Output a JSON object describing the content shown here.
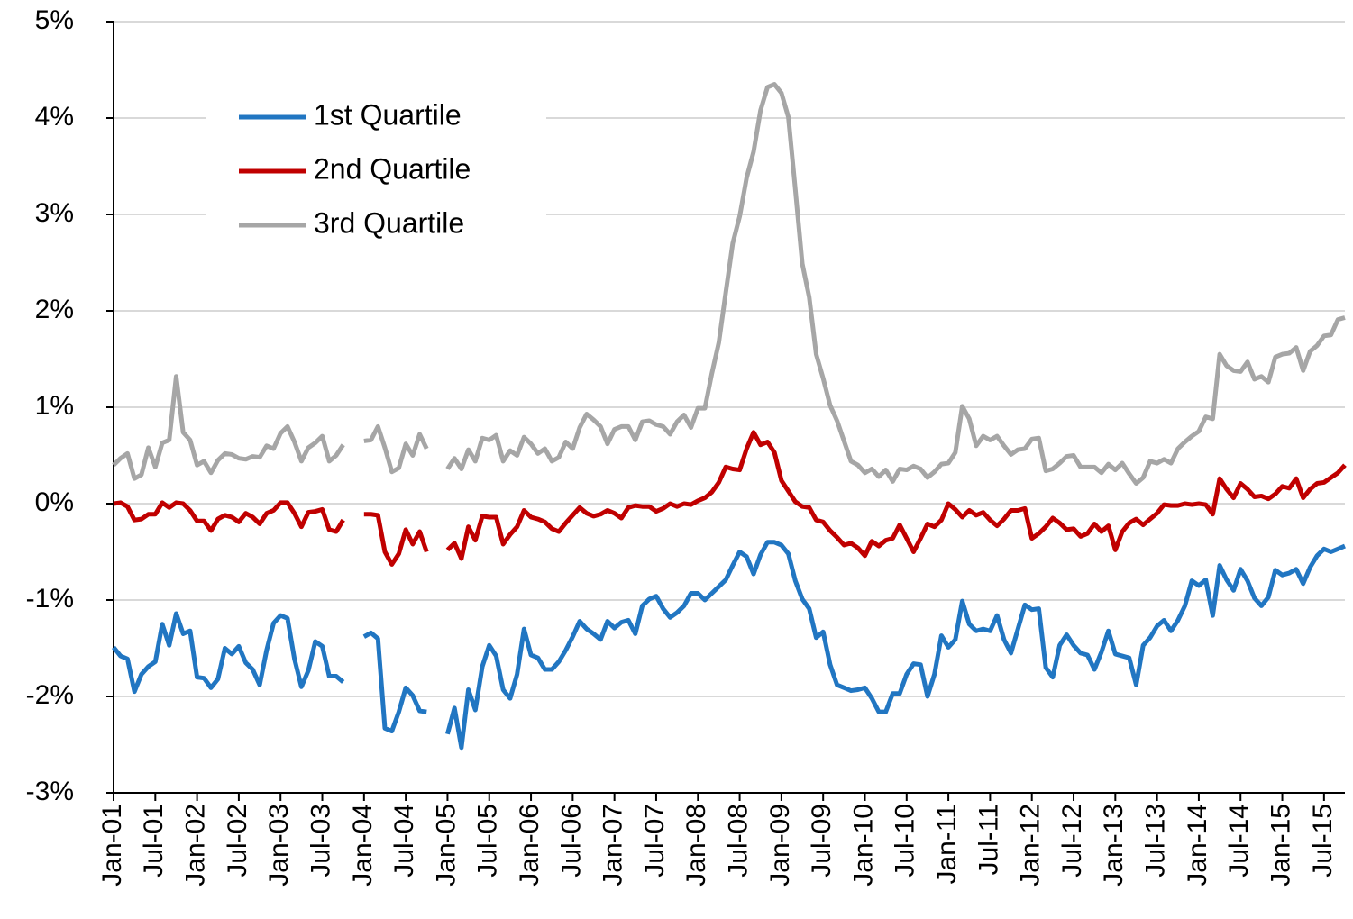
{
  "chart_data": {
    "type": "line",
    "categories": [
      "Jan-01",
      null,
      null,
      null,
      null,
      null,
      "Jul-01",
      null,
      null,
      null,
      null,
      null,
      "Jan-02",
      null,
      null,
      null,
      null,
      null,
      "Jul-02",
      null,
      null,
      null,
      null,
      null,
      "Jan-03",
      null,
      null,
      null,
      null,
      null,
      "Jul-03",
      null,
      null,
      null,
      null,
      null,
      "Jan-04",
      null,
      null,
      null,
      null,
      null,
      "Jul-04",
      null,
      null,
      null,
      null,
      null,
      "Jan-05",
      null,
      null,
      null,
      null,
      null,
      "Jul-05",
      null,
      null,
      null,
      null,
      null,
      "Jan-06",
      null,
      null,
      null,
      null,
      null,
      "Jul-06",
      null,
      null,
      null,
      null,
      null,
      "Jan-07",
      null,
      null,
      null,
      null,
      null,
      "Jul-07",
      null,
      null,
      null,
      null,
      null,
      "Jan-08",
      null,
      null,
      null,
      null,
      null,
      "Jul-08",
      null,
      null,
      null,
      null,
      null,
      "Jan-09",
      null,
      null,
      null,
      null,
      null,
      "Jul-09",
      null,
      null,
      null,
      null,
      null,
      "Jan-10",
      null,
      null,
      null,
      null,
      null,
      "Jul-10",
      null,
      null,
      null,
      null,
      null,
      "Jan-11",
      null,
      null,
      null,
      null,
      null,
      "Jul-11",
      null,
      null,
      null,
      null,
      null,
      "Jan-12",
      null,
      null,
      null,
      null,
      null,
      "Jul-12",
      null,
      null,
      null,
      null,
      null,
      "Jan-13",
      null,
      null,
      null,
      null,
      null,
      "Jul-13",
      null,
      null,
      null,
      null,
      null,
      "Jan-14",
      null,
      null,
      null,
      null,
      null,
      "Jul-14",
      null,
      null,
      null,
      null,
      null,
      "Jan-15",
      null,
      null,
      null,
      null,
      null,
      "Jul-15",
      null,
      null,
      null
    ],
    "series": [
      {
        "name": "1st Quartile",
        "color": "#2176c2",
        "values": [
          -1.49,
          -1.58,
          -1.61,
          -1.95,
          -1.77,
          -1.69,
          -1.64,
          -1.25,
          -1.47,
          -1.14,
          -1.35,
          -1.32,
          -1.8,
          -1.81,
          -1.91,
          -1.82,
          -1.5,
          -1.56,
          -1.48,
          -1.65,
          -1.72,
          -1.88,
          -1.52,
          -1.24,
          -1.16,
          -1.19,
          -1.61,
          -1.9,
          -1.73,
          -1.43,
          -1.48,
          -1.79,
          -1.79,
          -1.85,
          null,
          null,
          -1.38,
          -1.34,
          -1.4,
          -2.33,
          -2.36,
          -2.16,
          -1.91,
          -1.99,
          -2.15,
          -2.16,
          null,
          null,
          -2.39,
          -2.12,
          -2.53,
          -1.93,
          -2.14,
          -1.69,
          -1.47,
          -1.58,
          -1.93,
          -2.02,
          -1.77,
          -1.3,
          -1.57,
          -1.6,
          -1.72,
          -1.72,
          -1.64,
          -1.52,
          -1.38,
          -1.22,
          -1.3,
          -1.35,
          -1.41,
          -1.22,
          -1.29,
          -1.23,
          -1.21,
          -1.35,
          -1.06,
          -0.99,
          -0.96,
          -1.09,
          -1.18,
          -1.13,
          -1.06,
          -0.93,
          -0.93,
          -1.0,
          -0.93,
          -0.86,
          -0.79,
          -0.64,
          -0.5,
          -0.55,
          -0.73,
          -0.53,
          -0.4,
          -0.4,
          -0.43,
          -0.52,
          -0.8,
          -0.99,
          -1.09,
          -1.39,
          -1.33,
          -1.67,
          -1.88,
          -1.91,
          -1.94,
          -1.93,
          -1.91,
          -2.02,
          -2.16,
          -2.16,
          -1.97,
          -1.97,
          -1.77,
          -1.66,
          -1.67,
          -2.0,
          -1.77,
          -1.37,
          -1.49,
          -1.41,
          -1.01,
          -1.25,
          -1.32,
          -1.3,
          -1.32,
          -1.16,
          -1.41,
          -1.55,
          -1.3,
          -1.05,
          -1.1,
          -1.09,
          -1.7,
          -1.8,
          -1.47,
          -1.36,
          -1.47,
          -1.55,
          -1.57,
          -1.72,
          -1.54,
          -1.32,
          -1.56,
          -1.58,
          -1.6,
          -1.88,
          -1.47,
          -1.39,
          -1.27,
          -1.21,
          -1.32,
          -1.21,
          -1.06,
          -0.8,
          -0.85,
          -0.79,
          -1.16,
          -0.64,
          -0.79,
          -0.9,
          -0.68,
          -0.8,
          -0.98,
          -1.06,
          -0.97,
          -0.69,
          -0.74,
          -0.72,
          -0.68,
          -0.83,
          -0.66,
          -0.54,
          -0.47,
          -0.5,
          -0.47,
          -0.44
        ]
      },
      {
        "name": "2nd Quartile",
        "color": "#c00000",
        "values": [
          0.0,
          0.01,
          -0.03,
          -0.17,
          -0.16,
          -0.11,
          -0.11,
          0.01,
          -0.04,
          0.01,
          0.0,
          -0.07,
          -0.18,
          -0.18,
          -0.28,
          -0.16,
          -0.12,
          -0.14,
          -0.19,
          -0.1,
          -0.14,
          -0.21,
          -0.1,
          -0.07,
          0.01,
          0.01,
          -0.1,
          -0.24,
          -0.09,
          -0.08,
          -0.06,
          -0.27,
          -0.29,
          -0.17,
          null,
          null,
          -0.11,
          -0.11,
          -0.12,
          -0.5,
          -0.63,
          -0.52,
          -0.27,
          -0.42,
          -0.29,
          -0.5,
          null,
          null,
          -0.48,
          -0.41,
          -0.57,
          -0.24,
          -0.38,
          -0.13,
          -0.14,
          -0.14,
          -0.42,
          -0.32,
          -0.24,
          -0.07,
          -0.14,
          -0.16,
          -0.19,
          -0.26,
          -0.29,
          -0.2,
          -0.12,
          -0.04,
          -0.1,
          -0.13,
          -0.11,
          -0.07,
          -0.1,
          -0.15,
          -0.04,
          -0.02,
          -0.03,
          -0.03,
          -0.08,
          -0.05,
          0.0,
          -0.03,
          0.0,
          -0.01,
          0.03,
          0.06,
          0.12,
          0.22,
          0.38,
          0.36,
          0.35,
          0.57,
          0.74,
          0.61,
          0.64,
          0.53,
          0.24,
          0.13,
          0.02,
          -0.03,
          -0.04,
          -0.17,
          -0.19,
          -0.28,
          -0.35,
          -0.43,
          -0.41,
          -0.46,
          -0.54,
          -0.39,
          -0.44,
          -0.38,
          -0.36,
          -0.22,
          -0.36,
          -0.5,
          -0.36,
          -0.21,
          -0.24,
          -0.17,
          0.0,
          -0.06,
          -0.14,
          -0.07,
          -0.12,
          -0.09,
          -0.17,
          -0.23,
          -0.16,
          -0.07,
          -0.07,
          -0.05,
          -0.36,
          -0.31,
          -0.24,
          -0.15,
          -0.2,
          -0.27,
          -0.26,
          -0.34,
          -0.31,
          -0.21,
          -0.29,
          -0.23,
          -0.48,
          -0.29,
          -0.2,
          -0.16,
          -0.22,
          -0.16,
          -0.1,
          -0.01,
          -0.02,
          -0.02,
          0.0,
          -0.01,
          0.0,
          -0.01,
          -0.11,
          0.26,
          0.15,
          0.06,
          0.21,
          0.15,
          0.07,
          0.08,
          0.05,
          0.1,
          0.18,
          0.16,
          0.26,
          0.06,
          0.15,
          0.21,
          0.22,
          0.27,
          0.32,
          0.4
        ]
      },
      {
        "name": "3rd Quartile",
        "color": "#a6a6a6",
        "values": [
          0.4,
          0.47,
          0.52,
          0.26,
          0.3,
          0.58,
          0.38,
          0.63,
          0.66,
          1.32,
          0.74,
          0.66,
          0.4,
          0.44,
          0.32,
          0.45,
          0.52,
          0.51,
          0.47,
          0.46,
          0.49,
          0.48,
          0.6,
          0.57,
          0.73,
          0.8,
          0.64,
          0.44,
          0.58,
          0.63,
          0.7,
          0.44,
          0.5,
          0.61,
          null,
          null,
          0.65,
          0.66,
          0.8,
          0.58,
          0.33,
          0.37,
          0.62,
          0.5,
          0.72,
          0.57,
          null,
          null,
          0.36,
          0.47,
          0.36,
          0.56,
          0.44,
          0.68,
          0.66,
          0.71,
          0.44,
          0.55,
          0.5,
          0.69,
          0.62,
          0.52,
          0.57,
          0.44,
          0.48,
          0.64,
          0.57,
          0.79,
          0.93,
          0.87,
          0.8,
          0.62,
          0.77,
          0.8,
          0.8,
          0.66,
          0.85,
          0.86,
          0.82,
          0.8,
          0.72,
          0.85,
          0.92,
          0.79,
          0.99,
          0.99,
          1.35,
          1.67,
          2.19,
          2.7,
          2.98,
          3.38,
          3.65,
          4.08,
          4.32,
          4.35,
          4.26,
          4.01,
          3.26,
          2.49,
          2.14,
          1.55,
          1.3,
          1.02,
          0.86,
          0.65,
          0.44,
          0.4,
          0.32,
          0.36,
          0.28,
          0.35,
          0.23,
          0.36,
          0.35,
          0.39,
          0.36,
          0.27,
          0.33,
          0.41,
          0.42,
          0.53,
          1.01,
          0.88,
          0.6,
          0.7,
          0.66,
          0.7,
          0.6,
          0.51,
          0.56,
          0.57,
          0.67,
          0.68,
          0.34,
          0.36,
          0.42,
          0.49,
          0.5,
          0.38,
          0.38,
          0.38,
          0.32,
          0.41,
          0.35,
          0.42,
          0.31,
          0.21,
          0.27,
          0.44,
          0.42,
          0.46,
          0.42,
          0.57,
          0.64,
          0.7,
          0.75,
          0.9,
          0.88,
          1.55,
          1.43,
          1.38,
          1.37,
          1.47,
          1.29,
          1.32,
          1.26,
          1.52,
          1.55,
          1.56,
          1.62,
          1.38,
          1.58,
          1.64,
          1.74,
          1.75,
          1.91,
          1.93
        ]
      }
    ],
    "ylim": [
      -3,
      5
    ],
    "yticks": [
      {
        "value": -3,
        "label": "-3%"
      },
      {
        "value": -2,
        "label": "-2%"
      },
      {
        "value": -1,
        "label": "-1%"
      },
      {
        "value": 0,
        "label": "0%"
      },
      {
        "value": 1,
        "label": "1%"
      },
      {
        "value": 2,
        "label": "2%"
      },
      {
        "value": 3,
        "label": "3%"
      },
      {
        "value": 4,
        "label": "4%"
      },
      {
        "value": 5,
        "label": "5%"
      }
    ],
    "grid": true,
    "legend": "upper left"
  }
}
